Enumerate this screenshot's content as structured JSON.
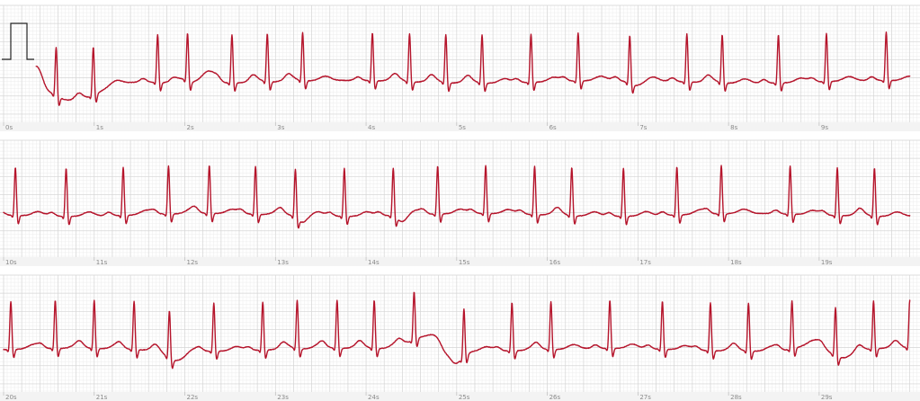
{
  "chart_data": {
    "type": "line",
    "title": "",
    "xlabel": "",
    "ylabel": "",
    "grid": true,
    "colors": {
      "trace": "#b5142b",
      "grid_major": "#d6d6d6",
      "grid_minor": "#ececec",
      "calibration": "#222222"
    },
    "seconds_per_strip": 10,
    "strips": [
      {
        "name": "",
        "xlim": [
          0,
          10
        ],
        "tick_labels": [
          "0s",
          "1s",
          "2s",
          "3s",
          "4s",
          "5s",
          "6s",
          "7s",
          "8s",
          "9s"
        ],
        "calibration_pulse": true,
        "beats": [
          0.1,
          0.58,
          0.99,
          1.7,
          2.03,
          2.52,
          2.91,
          3.3,
          4.07,
          4.48,
          4.88,
          5.28,
          5.82,
          6.34,
          6.91,
          7.54,
          7.93,
          8.55,
          9.08,
          9.74
        ],
        "events": [
          {
            "t": 0.36,
            "w": 0.05,
            "a": 0.9,
            "shape": "down"
          },
          {
            "t": 0.78,
            "w": 0.25,
            "a": -1.3
          },
          {
            "t": 2.25,
            "w": 0.08,
            "a": 0.5
          },
          {
            "t": 6.98,
            "w": 0.08,
            "a": -0.3
          }
        ]
      },
      {
        "name": "",
        "xlim": [
          10,
          20
        ],
        "tick_labels": [
          "10s",
          "11s",
          "12s",
          "13s",
          "14s",
          "15s",
          "16s",
          "17s",
          "18s",
          "19s"
        ],
        "calibration_pulse": false,
        "beats": [
          10.13,
          10.69,
          11.32,
          11.82,
          12.27,
          12.78,
          13.22,
          13.76,
          14.3,
          14.79,
          15.32,
          15.86,
          16.27,
          16.84,
          17.43,
          17.92,
          18.68,
          19.2,
          19.61
        ],
        "events": [
          {
            "t": 13.3,
            "w": 0.05,
            "a": -0.4
          },
          {
            "t": 14.4,
            "w": 0.05,
            "a": -0.4
          }
        ]
      },
      {
        "name": "",
        "xlim": [
          20,
          30
        ],
        "tick_labels": [
          "20s",
          "21s",
          "22s",
          "23s",
          "24s",
          "25s",
          "26s",
          "27s",
          "28s",
          "29s"
        ],
        "calibration_pulse": false,
        "beats": [
          20.08,
          20.57,
          21.0,
          21.44,
          21.83,
          22.32,
          22.86,
          23.24,
          23.68,
          24.09,
          24.53,
          25.08,
          25.61,
          26.04,
          26.69,
          27.27,
          27.8,
          28.22,
          28.7,
          29.18,
          29.6,
          30.0
        ],
        "events": [
          {
            "t": 21.9,
            "w": 0.12,
            "a": -0.6
          },
          {
            "t": 24.7,
            "w": 0.2,
            "a": 0.9
          },
          {
            "t": 24.95,
            "w": 0.1,
            "a": -1.2
          },
          {
            "t": 28.95,
            "w": 0.15,
            "a": 0.4
          },
          {
            "t": 29.25,
            "w": 0.15,
            "a": -0.6
          }
        ]
      }
    ]
  }
}
